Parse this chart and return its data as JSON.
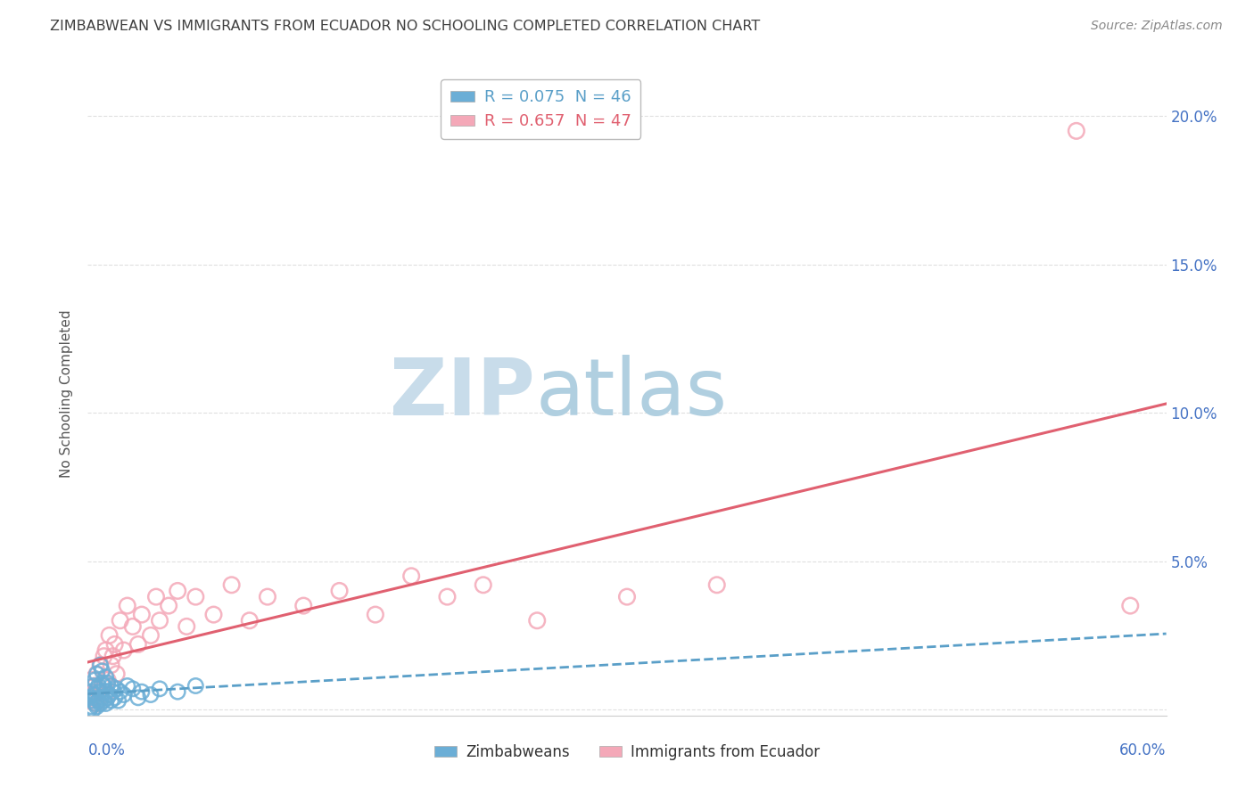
{
  "title": "ZIMBABWEAN VS IMMIGRANTS FROM ECUADOR NO SCHOOLING COMPLETED CORRELATION CHART",
  "source": "Source: ZipAtlas.com",
  "ylabel": "No Schooling Completed",
  "x_lim": [
    0.0,
    0.6
  ],
  "y_lim": [
    -0.002,
    0.215
  ],
  "y_ticks": [
    0.0,
    0.05,
    0.1,
    0.15,
    0.2
  ],
  "y_tick_labels_right": [
    "",
    "5.0%",
    "10.0%",
    "15.0%",
    "20.0%"
  ],
  "x_tick_left": "0.0%",
  "x_tick_right": "60.0%",
  "legend_r_labels": [
    "R = 0.075  N = 46",
    "R = 0.657  N = 47"
  ],
  "legend_bottom_labels": [
    "Zimbabweans",
    "Immigrants from Ecuador"
  ],
  "zim_color": "#6baed6",
  "ecu_color": "#f4a8b8",
  "ecu_line_color": "#e06070",
  "zim_line_color": "#5a9fc8",
  "watermark_zip": "ZIP",
  "watermark_atlas": "atlas",
  "watermark_color_zip": "#c5d8e8",
  "watermark_color_atlas": "#b8d4e8",
  "axis_label_color": "#4472c4",
  "title_color": "#404040",
  "source_color": "#888888",
  "grid_color": "#e0e0e0",
  "bg_color": "#ffffff",
  "zim_x": [
    0.001,
    0.001,
    0.002,
    0.002,
    0.003,
    0.003,
    0.003,
    0.004,
    0.004,
    0.004,
    0.005,
    0.005,
    0.005,
    0.005,
    0.006,
    0.006,
    0.007,
    0.007,
    0.007,
    0.008,
    0.008,
    0.008,
    0.009,
    0.009,
    0.01,
    0.01,
    0.01,
    0.011,
    0.011,
    0.012,
    0.013,
    0.013,
    0.014,
    0.015,
    0.016,
    0.017,
    0.018,
    0.02,
    0.022,
    0.025,
    0.028,
    0.03,
    0.035,
    0.04,
    0.05,
    0.06
  ],
  "zim_y": [
    0.0,
    0.004,
    0.001,
    0.006,
    0.0,
    0.003,
    0.008,
    0.002,
    0.005,
    0.01,
    0.001,
    0.004,
    0.007,
    0.012,
    0.003,
    0.008,
    0.002,
    0.006,
    0.015,
    0.004,
    0.009,
    0.013,
    0.003,
    0.008,
    0.002,
    0.006,
    0.011,
    0.004,
    0.009,
    0.005,
    0.003,
    0.008,
    0.006,
    0.004,
    0.007,
    0.003,
    0.006,
    0.005,
    0.008,
    0.007,
    0.004,
    0.006,
    0.005,
    0.007,
    0.006,
    0.008
  ],
  "ecu_x": [
    0.001,
    0.002,
    0.002,
    0.003,
    0.004,
    0.005,
    0.005,
    0.006,
    0.007,
    0.008,
    0.009,
    0.01,
    0.01,
    0.011,
    0.012,
    0.013,
    0.014,
    0.015,
    0.016,
    0.018,
    0.02,
    0.022,
    0.025,
    0.028,
    0.03,
    0.035,
    0.038,
    0.04,
    0.045,
    0.05,
    0.055,
    0.06,
    0.07,
    0.08,
    0.09,
    0.1,
    0.12,
    0.14,
    0.16,
    0.18,
    0.2,
    0.22,
    0.25,
    0.3,
    0.35,
    0.55,
    0.58
  ],
  "ecu_y": [
    0.003,
    0.005,
    0.01,
    0.004,
    0.008,
    0.002,
    0.012,
    0.006,
    0.015,
    0.008,
    0.018,
    0.005,
    0.02,
    0.01,
    0.025,
    0.015,
    0.018,
    0.022,
    0.012,
    0.03,
    0.02,
    0.035,
    0.028,
    0.022,
    0.032,
    0.025,
    0.038,
    0.03,
    0.035,
    0.04,
    0.028,
    0.038,
    0.032,
    0.042,
    0.03,
    0.038,
    0.035,
    0.04,
    0.032,
    0.045,
    0.038,
    0.042,
    0.03,
    0.038,
    0.042,
    0.195,
    0.035
  ]
}
